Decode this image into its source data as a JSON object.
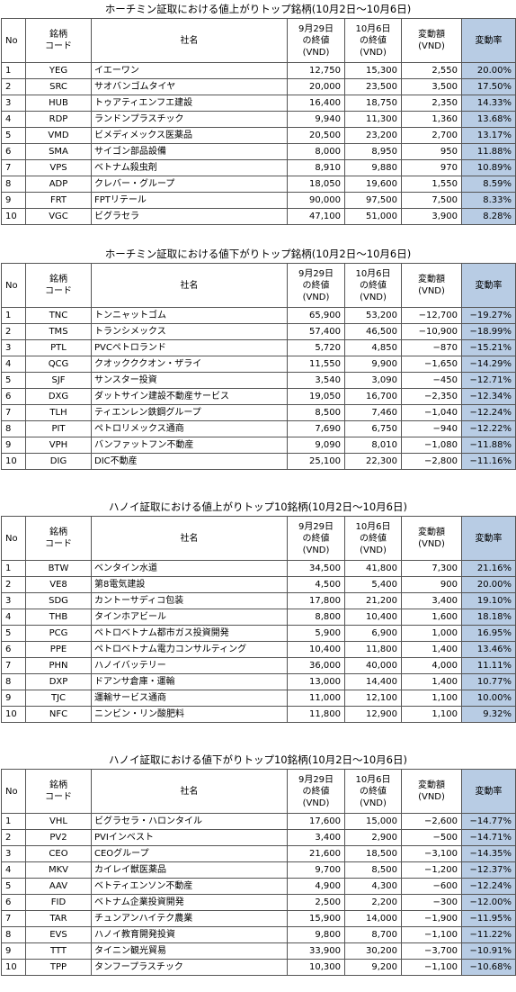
{
  "headers": {
    "no": "No",
    "code": "銘柄\nコード",
    "name": "社名",
    "prev": "9月29日\nの終値\n(VND)",
    "now": "10月6日\nの終値\n(VND)",
    "diff": "変動額\n(VND)",
    "rate": "変動率"
  },
  "tables": [
    {
      "title": "ホーチミン証取における値上がりトップ銘柄(10月2日～10月6日)",
      "rows": [
        {
          "no": "1",
          "code": "YEG",
          "name": "イエーワン",
          "prev": "12,750",
          "now": "15,300",
          "diff": "2,550",
          "rate": "20.00%"
        },
        {
          "no": "2",
          "code": "SRC",
          "name": "サオバンゴムタイヤ",
          "prev": "20,000",
          "now": "23,500",
          "diff": "3,500",
          "rate": "17.50%"
        },
        {
          "no": "3",
          "code": "HUB",
          "name": "トゥアティエンフエ建設",
          "prev": "16,400",
          "now": "18,750",
          "diff": "2,350",
          "rate": "14.33%"
        },
        {
          "no": "4",
          "code": "RDP",
          "name": "ランドンプラスチック",
          "prev": "9,940",
          "now": "11,300",
          "diff": "1,360",
          "rate": "13.68%"
        },
        {
          "no": "5",
          "code": "VMD",
          "name": "ビメディメックス医薬品",
          "prev": "20,500",
          "now": "23,200",
          "diff": "2,700",
          "rate": "13.17%"
        },
        {
          "no": "6",
          "code": "SMA",
          "name": "サイゴン部品設備",
          "prev": "8,000",
          "now": "8,950",
          "diff": "950",
          "rate": "11.88%"
        },
        {
          "no": "7",
          "code": "VPS",
          "name": "ベトナム殺虫剤",
          "prev": "8,910",
          "now": "9,880",
          "diff": "970",
          "rate": "10.89%"
        },
        {
          "no": "8",
          "code": "ADP",
          "name": "クレバー・グループ",
          "prev": "18,050",
          "now": "19,600",
          "diff": "1,550",
          "rate": "8.59%"
        },
        {
          "no": "9",
          "code": "FRT",
          "name": "FPTリテール",
          "prev": "90,000",
          "now": "97,500",
          "diff": "7,500",
          "rate": "8.33%"
        },
        {
          "no": "10",
          "code": "VGC",
          "name": "ビグラセラ",
          "prev": "47,100",
          "now": "51,000",
          "diff": "3,900",
          "rate": "8.28%"
        }
      ]
    },
    {
      "title": "ホーチミン証取における値下がりトップ銘柄(10月2日～10月6日)",
      "rows": [
        {
          "no": "1",
          "code": "TNC",
          "name": "トンニャットゴム",
          "prev": "65,900",
          "now": "53,200",
          "diff": "−12,700",
          "rate": "−19.27%"
        },
        {
          "no": "2",
          "code": "TMS",
          "name": "トランシメックス",
          "prev": "57,400",
          "now": "46,500",
          "diff": "−10,900",
          "rate": "−18.99%"
        },
        {
          "no": "3",
          "code": "PTL",
          "name": "PVCペトロランド",
          "prev": "5,720",
          "now": "4,850",
          "diff": "−870",
          "rate": "−15.21%"
        },
        {
          "no": "4",
          "code": "QCG",
          "name": "クオックククオン・ザライ",
          "prev": "11,550",
          "now": "9,900",
          "diff": "−1,650",
          "rate": "−14.29%"
        },
        {
          "no": "5",
          "code": "SJF",
          "name": "サンスター投資",
          "prev": "3,540",
          "now": "3,090",
          "diff": "−450",
          "rate": "−12.71%"
        },
        {
          "no": "6",
          "code": "DXG",
          "name": " ダットサイン建設不動産サービス",
          "prev": "19,050",
          "now": "16,700",
          "diff": "−2,350",
          "rate": "−12.34%"
        },
        {
          "no": "7",
          "code": "TLH",
          "name": "ティエンレン鉄鋼グループ",
          "prev": "8,500",
          "now": "7,460",
          "diff": "−1,040",
          "rate": "−12.24%"
        },
        {
          "no": "8",
          "code": "PIT",
          "name": "ペトロリメックス通商",
          "prev": "7,690",
          "now": "6,750",
          "diff": "−940",
          "rate": "−12.22%"
        },
        {
          "no": "9",
          "code": "VPH",
          "name": "バンファットフン不動産",
          "prev": "9,090",
          "now": "8,010",
          "diff": "−1,080",
          "rate": "−11.88%"
        },
        {
          "no": "10",
          "code": "DIG",
          "name": "DIC不動産",
          "prev": "25,100",
          "now": "22,300",
          "diff": "−2,800",
          "rate": "−11.16%"
        }
      ]
    },
    {
      "title": "ハノイ証取における値上がりトップ10銘柄(10月2日～10月6日)",
      "rows": [
        {
          "no": "1",
          "code": "BTW",
          "name": "ベンタイン水道",
          "prev": "34,500",
          "now": "41,800",
          "diff": "7,300",
          "rate": "21.16%"
        },
        {
          "no": "2",
          "code": "VE8",
          "name": "第8電気建設",
          "prev": "4,500",
          "now": "5,400",
          "diff": "900",
          "rate": "20.00%"
        },
        {
          "no": "3",
          "code": "SDG",
          "name": "カントーサディコ包装",
          "prev": "17,800",
          "now": "21,200",
          "diff": "3,400",
          "rate": "19.10%"
        },
        {
          "no": "4",
          "code": "THB",
          "name": "タインホアビール",
          "prev": "8,800",
          "now": "10,400",
          "diff": "1,600",
          "rate": "18.18%"
        },
        {
          "no": "5",
          "code": "PCG",
          "name": "ペトロベトナム都市ガス投資開発",
          "prev": "5,900",
          "now": "6,900",
          "diff": "1,000",
          "rate": "16.95%"
        },
        {
          "no": "6",
          "code": "PPE",
          "name": "ペトロベトナム電力コンサルティング",
          "prev": "10,400",
          "now": "11,800",
          "diff": "1,400",
          "rate": "13.46%"
        },
        {
          "no": "7",
          "code": "PHN",
          "name": "ハノイバッテリー",
          "prev": "36,000",
          "now": "40,000",
          "diff": "4,000",
          "rate": "11.11%"
        },
        {
          "no": "8",
          "code": "DXP",
          "name": "ドアンサ倉庫・運輸",
          "prev": "13,000",
          "now": "14,400",
          "diff": "1,400",
          "rate": "10.77%"
        },
        {
          "no": "9",
          "code": "TJC",
          "name": "運輸サービス通商",
          "prev": "11,000",
          "now": "12,100",
          "diff": "1,100",
          "rate": "10.00%"
        },
        {
          "no": "10",
          "code": "NFC",
          "name": "ニンビン・リン酸肥料",
          "prev": "11,800",
          "now": "12,900",
          "diff": "1,100",
          "rate": "9.32%"
        }
      ]
    },
    {
      "title": "ハノイ証取における値下がりトップ10銘柄(10月2日～10月6日)",
      "rows": [
        {
          "no": "1",
          "code": "VHL",
          "name": "ビグラセラ・ハロンタイル",
          "prev": "17,600",
          "now": "15,000",
          "diff": "−2,600",
          "rate": "−14.77%"
        },
        {
          "no": "2",
          "code": "PV2",
          "name": "PVIインベスト",
          "prev": "3,400",
          "now": "2,900",
          "diff": "−500",
          "rate": "−14.71%"
        },
        {
          "no": "3",
          "code": "CEO",
          "name": "CEOグループ",
          "prev": "21,600",
          "now": "18,500",
          "diff": "−3,100",
          "rate": "−14.35%"
        },
        {
          "no": "4",
          "code": "MKV",
          "name": "カイレイ獣医薬品",
          "prev": "9,700",
          "now": "8,500",
          "diff": "−1,200",
          "rate": "−12.37%"
        },
        {
          "no": "5",
          "code": "AAV",
          "name": "ベトティエンソン不動産",
          "prev": "4,900",
          "now": "4,300",
          "diff": "−600",
          "rate": "−12.24%"
        },
        {
          "no": "6",
          "code": "FID",
          "name": "ベトナム企業投資開発",
          "prev": "2,500",
          "now": "2,200",
          "diff": "−300",
          "rate": "−12.00%"
        },
        {
          "no": "7",
          "code": "TAR",
          "name": "チュンアンハイテク農業",
          "prev": "15,900",
          "now": "14,000",
          "diff": "−1,900",
          "rate": "−11.95%"
        },
        {
          "no": "8",
          "code": "EVS",
          "name": "ハノイ教育開発投資",
          "prev": "9,800",
          "now": "8,700",
          "diff": "−1,100",
          "rate": "−11.22%"
        },
        {
          "no": "9",
          "code": "TTT",
          "name": " タイニン観光貿易",
          "prev": "33,900",
          "now": "30,200",
          "diff": "−3,700",
          "rate": "−10.91%"
        },
        {
          "no": "10",
          "code": "TPP",
          "name": "タンフープラスチック",
          "prev": "10,300",
          "now": "9,200",
          "diff": "−1,100",
          "rate": "−10.68%"
        }
      ]
    }
  ]
}
